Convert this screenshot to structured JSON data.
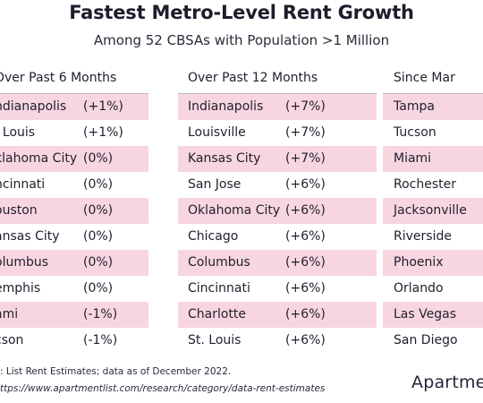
{
  "chart_data": {
    "type": "table",
    "title": "Fastest Metro-Level Rent Growth",
    "subtitle": "Among 52 CBSAs with Population >1 Million",
    "columns": [
      {
        "header": "Over Past 6 Months",
        "rows": [
          {
            "city": "ndianapolis",
            "value": "(+1%)"
          },
          {
            "city": ". Louis",
            "value": "(+1%)"
          },
          {
            "city": "klahoma City",
            "value": "(0%)"
          },
          {
            "city": "ncinnati",
            "value": "(0%)"
          },
          {
            "city": "ouston",
            "value": "(0%)"
          },
          {
            "city": "ansas City",
            "value": "(0%)"
          },
          {
            "city": "olumbus",
            "value": "(0%)"
          },
          {
            "city": "emphis",
            "value": "(0%)"
          },
          {
            "city": "ami",
            "value": "(-1%)"
          },
          {
            "city": "cson",
            "value": "(-1%)"
          }
        ]
      },
      {
        "header": "Over Past 12 Months",
        "rows": [
          {
            "city": "Indianapolis",
            "value": "(+7%)"
          },
          {
            "city": "Louisville",
            "value": "(+7%)"
          },
          {
            "city": "Kansas City",
            "value": "(+7%)"
          },
          {
            "city": "San Jose",
            "value": "(+6%)"
          },
          {
            "city": "Oklahoma City",
            "value": "(+6%)"
          },
          {
            "city": "Chicago",
            "value": "(+6%)"
          },
          {
            "city": "Columbus",
            "value": "(+6%)"
          },
          {
            "city": "Cincinnati",
            "value": "(+6%)"
          },
          {
            "city": "Charlotte",
            "value": "(+6%)"
          },
          {
            "city": "St. Louis",
            "value": "(+6%)"
          }
        ]
      },
      {
        "header": "Since Mar",
        "rows": [
          {
            "city": "Tampa",
            "value": ""
          },
          {
            "city": "Tucson",
            "value": ""
          },
          {
            "city": "Miami",
            "value": ""
          },
          {
            "city": "Rochester",
            "value": ""
          },
          {
            "city": "Jacksonville",
            "value": ""
          },
          {
            "city": "Riverside",
            "value": ""
          },
          {
            "city": "Phoenix",
            "value": ""
          },
          {
            "city": "Orlando",
            "value": ""
          },
          {
            "city": "Las Vegas",
            "value": ""
          },
          {
            "city": "San Diego",
            "value": ""
          }
        ]
      }
    ],
    "colors": {
      "stripe": "#f8d6e0",
      "text": "#1f1f2e",
      "rule": "#b9b9c3"
    }
  },
  "footer": {
    "source": ": List Rent Estimates; data as of December 2022.",
    "url": "ttps://www.apartmentlist.com/research/category/data-rent-estimates"
  },
  "logo": "Apartme"
}
